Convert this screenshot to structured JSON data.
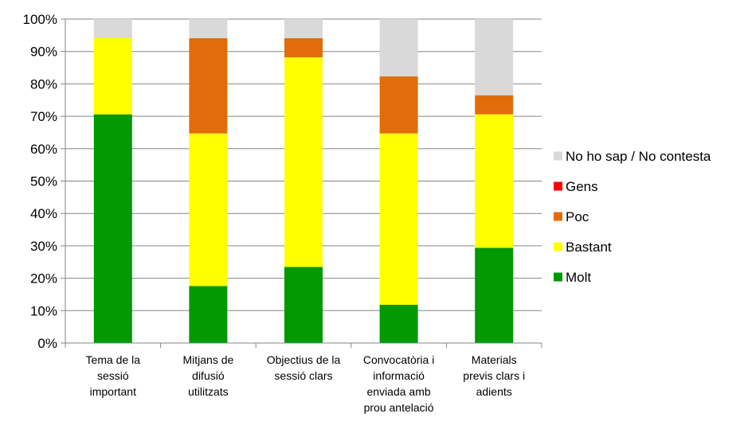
{
  "chart_data": {
    "type": "bar",
    "stacked": true,
    "percent": true,
    "categories": [
      "Tema de la sessió important",
      "Mitjans de difusió utilitzats",
      "Objectius de la sessió clars",
      "Convocatòria i informació enviada amb prou antelació",
      "Materials previs clars i adients"
    ],
    "category_lines": [
      [
        "Tema de la",
        "sessió",
        "important"
      ],
      [
        "Mitjans de",
        "difusió",
        "utilitzats"
      ],
      [
        "Objectius de la",
        "sessió clars"
      ],
      [
        "Convocatòria i",
        "informació",
        "enviada amb",
        "prou antelació"
      ],
      [
        "Materials",
        "previs clars i",
        "adients"
      ]
    ],
    "series": [
      {
        "name": "Molt",
        "color": "#009900",
        "values": [
          70.6,
          17.6,
          23.5,
          11.8,
          29.4
        ]
      },
      {
        "name": "Bastant",
        "color": "#ffff00",
        "values": [
          23.5,
          47.1,
          64.7,
          52.9,
          41.2
        ]
      },
      {
        "name": "Poc",
        "color": "#e36c0a",
        "values": [
          0,
          29.4,
          5.9,
          17.6,
          5.9
        ]
      },
      {
        "name": "Gens",
        "color": "#ff0000",
        "values": [
          0,
          0,
          0,
          0,
          0
        ]
      },
      {
        "name": "No ho sap / No contesta",
        "color": "#d9d9d9",
        "values": [
          5.9,
          5.9,
          5.9,
          17.7,
          23.5
        ]
      }
    ],
    "ylim": [
      0,
      100
    ],
    "ytick_step": 10,
    "ytick_labels": [
      "0%",
      "10%",
      "20%",
      "30%",
      "40%",
      "50%",
      "60%",
      "70%",
      "80%",
      "90%",
      "100%"
    ],
    "grid": true,
    "legend_position": "right"
  }
}
